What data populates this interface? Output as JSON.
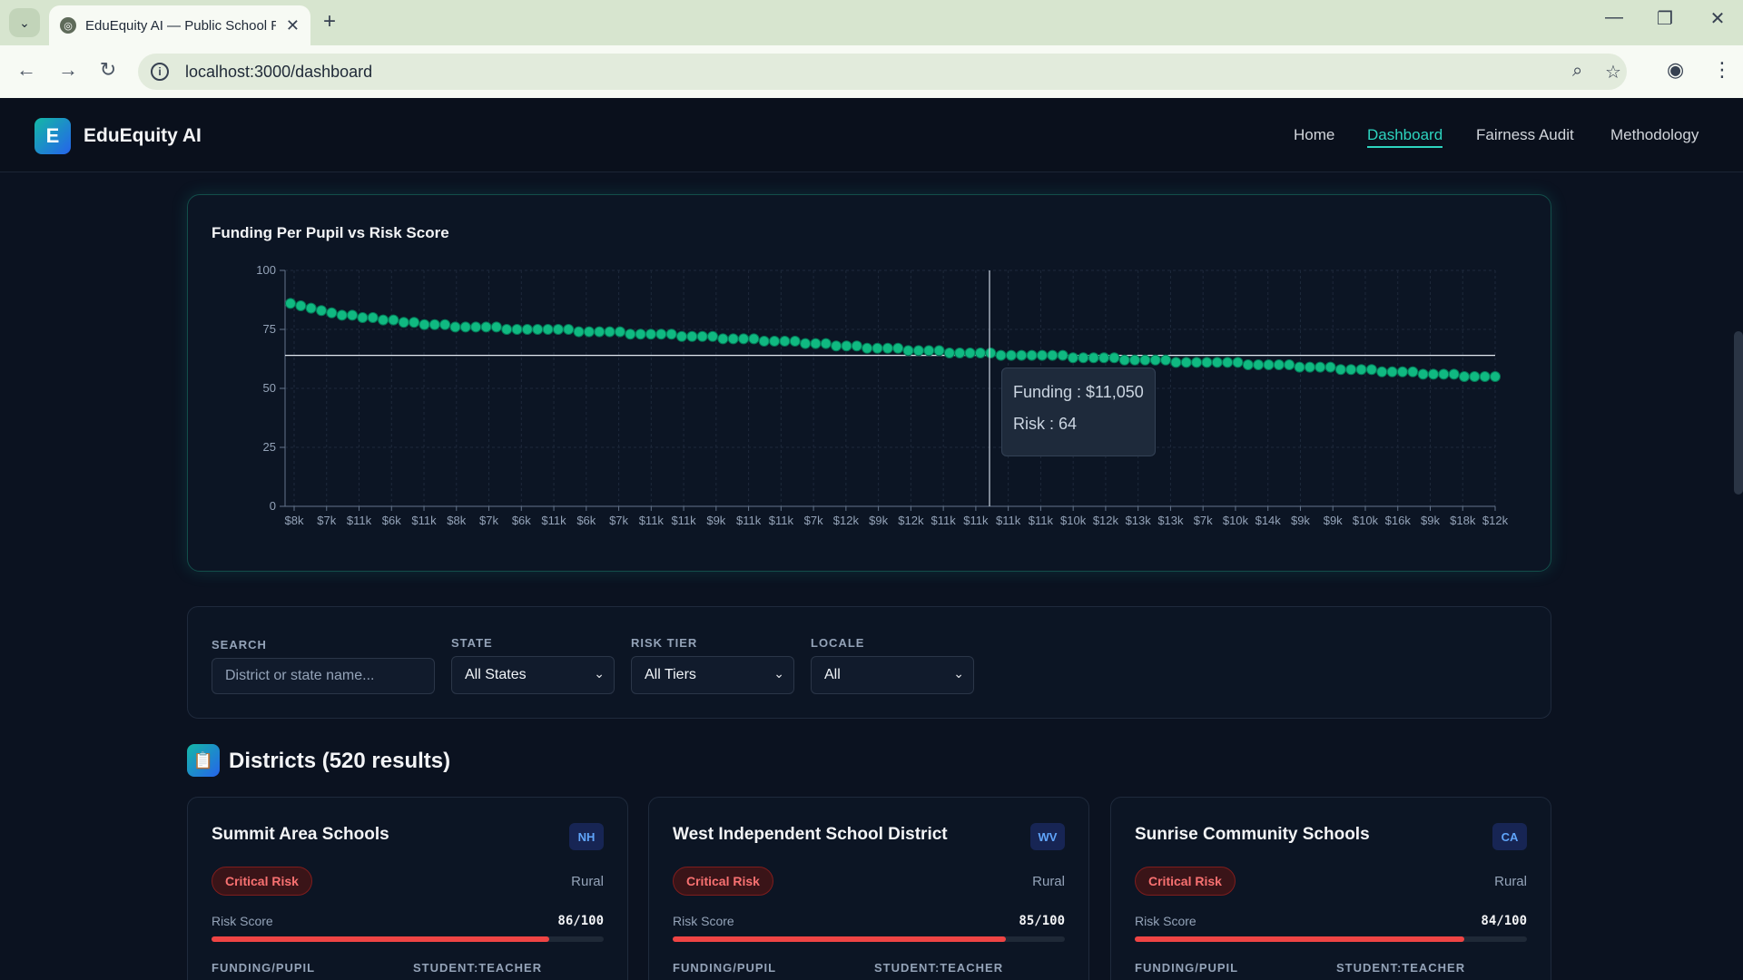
{
  "browser": {
    "tab_title": "EduEquity AI — Public School R",
    "url": "localhost:3000/dashboard"
  },
  "app": {
    "logo_letter": "E",
    "name": "EduEquity AI",
    "nav": [
      {
        "label": "Home",
        "active": false
      },
      {
        "label": "Dashboard",
        "active": true
      },
      {
        "label": "Fairness Audit",
        "active": false
      },
      {
        "label": "Methodology",
        "active": false
      }
    ]
  },
  "chart": {
    "title": "Funding Per Pupil vs Risk Score",
    "tooltip": {
      "funding": "Funding : $11,050",
      "risk": "Risk : 64"
    }
  },
  "chart_data": {
    "type": "scatter",
    "title": "Funding Per Pupil vs Risk Score",
    "xlabel": "",
    "ylabel": "",
    "ylim": [
      0,
      100
    ],
    "yticks": [
      0,
      25,
      50,
      75,
      100
    ],
    "x_tick_labels": [
      "$8k",
      "$7k",
      "$11k",
      "$6k",
      "$11k",
      "$8k",
      "$7k",
      "$6k",
      "$11k",
      "$6k",
      "$7k",
      "$11k",
      "$11k",
      "$9k",
      "$11k",
      "$11k",
      "$7k",
      "$12k",
      "$9k",
      "$12k",
      "$11k",
      "$11k",
      "$11k",
      "$11k",
      "$10k",
      "$12k",
      "$13k",
      "$13k",
      "$7k",
      "$10k",
      "$14k",
      "$9k",
      "$9k",
      "$10k",
      "$16k",
      "$9k",
      "$18k",
      "$12k"
    ],
    "reference_line_y": 64,
    "hover": {
      "funding": 11050,
      "risk": 64
    },
    "series": [
      {
        "color": "#10b981",
        "points_desc_by_rank": [
          86,
          85,
          84,
          83,
          82,
          81,
          81,
          80,
          80,
          79,
          79,
          78,
          78,
          77,
          77,
          77,
          76,
          76,
          76,
          76,
          76,
          75,
          75,
          75,
          75,
          75,
          75,
          75,
          74,
          74,
          74,
          74,
          74,
          73,
          73,
          73,
          73,
          73,
          72,
          72,
          72,
          72,
          71,
          71,
          71,
          71,
          70,
          70,
          70,
          70,
          69,
          69,
          69,
          68,
          68,
          68,
          67,
          67,
          67,
          67,
          66,
          66,
          66,
          66,
          65,
          65,
          65,
          65,
          65,
          64,
          64,
          64,
          64,
          64,
          64,
          64,
          63,
          63,
          63,
          63,
          63,
          62,
          62,
          62,
          62,
          62,
          61,
          61,
          61,
          61,
          61,
          61,
          61,
          60,
          60,
          60,
          60,
          60,
          59,
          59,
          59,
          59,
          58,
          58,
          58,
          58,
          57,
          57,
          57,
          57,
          56,
          56,
          56,
          56,
          55,
          55,
          55,
          55
        ]
      }
    ]
  },
  "filters": {
    "search_label": "SEARCH",
    "search_placeholder": "District or state name...",
    "state_label": "STATE",
    "state_value": "All States",
    "tier_label": "RISK TIER",
    "tier_value": "All Tiers",
    "locale_label": "LOCALE",
    "locale_value": "All"
  },
  "districts": {
    "icon": "📋",
    "title": "Districts (520 results)",
    "cards": [
      {
        "name": "Summit Area Schools",
        "state": "NH",
        "risk": "Critical Risk",
        "locale": "Rural",
        "score_label": "Risk Score",
        "score": "86/100",
        "score_value": 86,
        "funding_label": "FUNDING/PUPIL",
        "ratio_label": "STUDENT:TEACHER"
      },
      {
        "name": "West Independent School District",
        "state": "WV",
        "risk": "Critical Risk",
        "locale": "Rural",
        "score_label": "Risk Score",
        "score": "85/100",
        "score_value": 85,
        "funding_label": "FUNDING/PUPIL",
        "ratio_label": "STUDENT:TEACHER"
      },
      {
        "name": "Sunrise Community Schools",
        "state": "CA",
        "risk": "Critical Risk",
        "locale": "Rural",
        "score_label": "Risk Score",
        "score": "84/100",
        "score_value": 84,
        "funding_label": "FUNDING/PUPIL",
        "ratio_label": "STUDENT:TEACHER"
      }
    ]
  },
  "icons": {
    "back": "back-arrow-icon",
    "forward": "forward-arrow-icon",
    "reload": "reload-icon",
    "zoom": "zoom-icon",
    "star": "bookmark-star-icon",
    "profile": "profile-icon",
    "menu": "kebab-menu-icon"
  }
}
